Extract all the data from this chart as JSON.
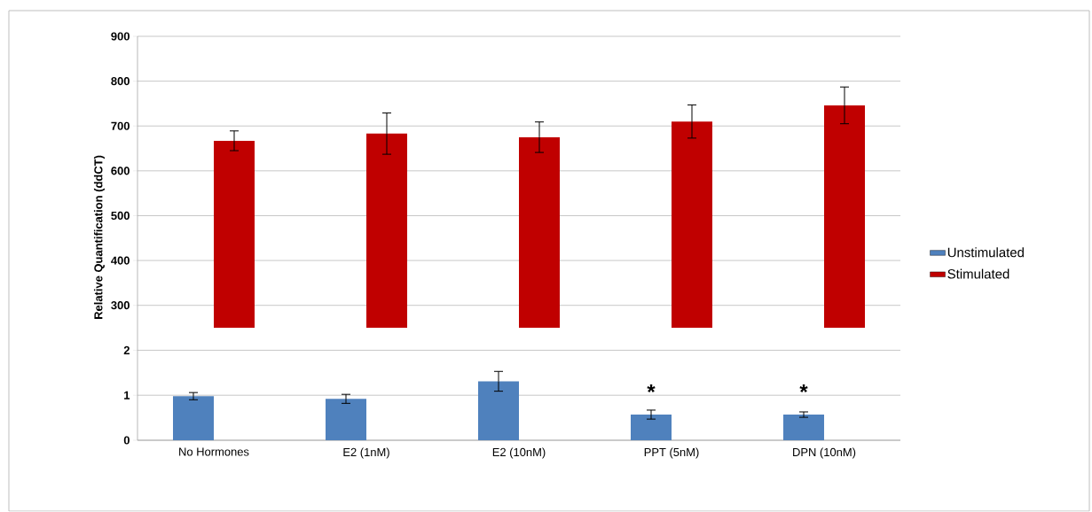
{
  "chart_data": [
    {
      "type": "bar",
      "categories": [
        null,
        null,
        null,
        null,
        null
      ],
      "series": [
        {
          "name": "Unstimulated",
          "color": "#4f81bd",
          "values": [
            null,
            null,
            null,
            null,
            null
          ]
        },
        {
          "name": "Stimulated",
          "color": "#c00000",
          "values": [
            667,
            683,
            675,
            710,
            746
          ],
          "errors": [
            22,
            46,
            34,
            37,
            41
          ]
        }
      ],
      "ylim": [
        250,
        900
      ],
      "yticks": [
        300,
        400,
        500,
        600,
        700,
        800,
        900
      ],
      "ylabel": "Relative Quantification  (ddCT)",
      "grid": "y",
      "legend": "right",
      "tick_labels": "y"
    },
    {
      "type": "bar",
      "categories": [
        "No Hormones",
        "E2 (1nM)",
        "E2 (10nM)",
        "PPT (5nM)",
        "DPN (10nM)"
      ],
      "series": [
        {
          "color": "#4f81bd",
          "values": [
            0.98,
            0.92,
            1.31,
            0.57,
            0.57
          ],
          "errors": [
            0.08,
            0.1,
            0.22,
            0.1,
            0.06
          ]
        },
        {
          "color": "#c00000",
          "values": [
            null,
            null,
            null,
            null,
            null
          ]
        }
      ],
      "ylim": [
        0,
        2.5
      ],
      "yticks": [
        0,
        1,
        2
      ],
      "grid": "y",
      "annotations": [
        {
          "text": "*",
          "x": "PPT (5nM)",
          "y": 0.57
        },
        {
          "text": "*",
          "x": "DPN (10nM)",
          "y": 0.57
        }
      ]
    }
  ]
}
